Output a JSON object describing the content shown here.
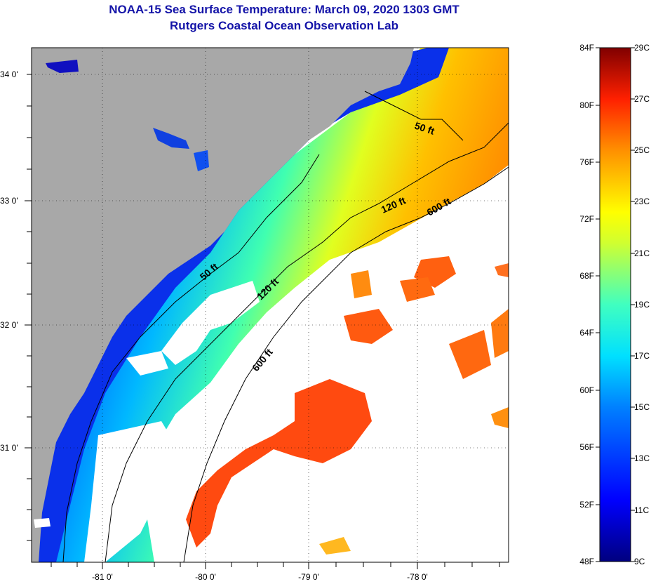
{
  "title": {
    "line1": "NOAA-15 Sea Surface Temperature:  March 09, 2020 1303 GMT",
    "line2": "Rutgers Coastal Ocean Observation Lab"
  },
  "map": {
    "lon_labels": [
      "-81 0'",
      "-80 0'",
      "-79 0'",
      "-78 0'"
    ],
    "lat_labels": [
      "34 0'",
      "33 0'",
      "32 0'",
      "31 0'"
    ],
    "isobaths": [
      {
        "label": "50 ft"
      },
      {
        "label": "120 ft"
      },
      {
        "label": "600 ft"
      },
      {
        "label": "50 ft"
      },
      {
        "label": "120 ft"
      },
      {
        "label": "600 ft"
      }
    ],
    "colors": {
      "land": "#a8a8a8",
      "cloud": "#ffffff"
    }
  },
  "colorbar": {
    "fahrenheit": [
      "84F",
      "80F",
      "76F",
      "72F",
      "68F",
      "64F",
      "60F",
      "56F",
      "52F",
      "48F"
    ],
    "celsius": [
      "29C",
      "27C",
      "25C",
      "23C",
      "21C",
      "19C",
      "17C",
      "15C",
      "13C",
      "11C",
      "9C"
    ]
  }
}
